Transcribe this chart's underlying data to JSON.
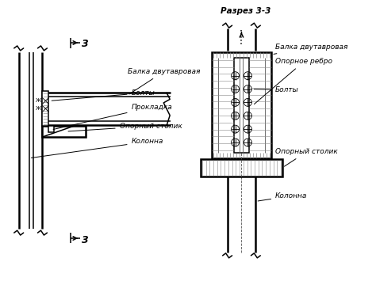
{
  "bg_color": "#ffffff",
  "line_color": "#000000",
  "title_section2": "Разрез 3-3",
  "label_balka": "Балка двутавровая",
  "label_opornoe_rebro": "Опорное ребро",
  "label_bolty": "Болты",
  "label_prokladka": "Прокладка",
  "label_oporny_stolik": "Опорный столик",
  "label_kolonna": "Колонна",
  "label_3": "3"
}
